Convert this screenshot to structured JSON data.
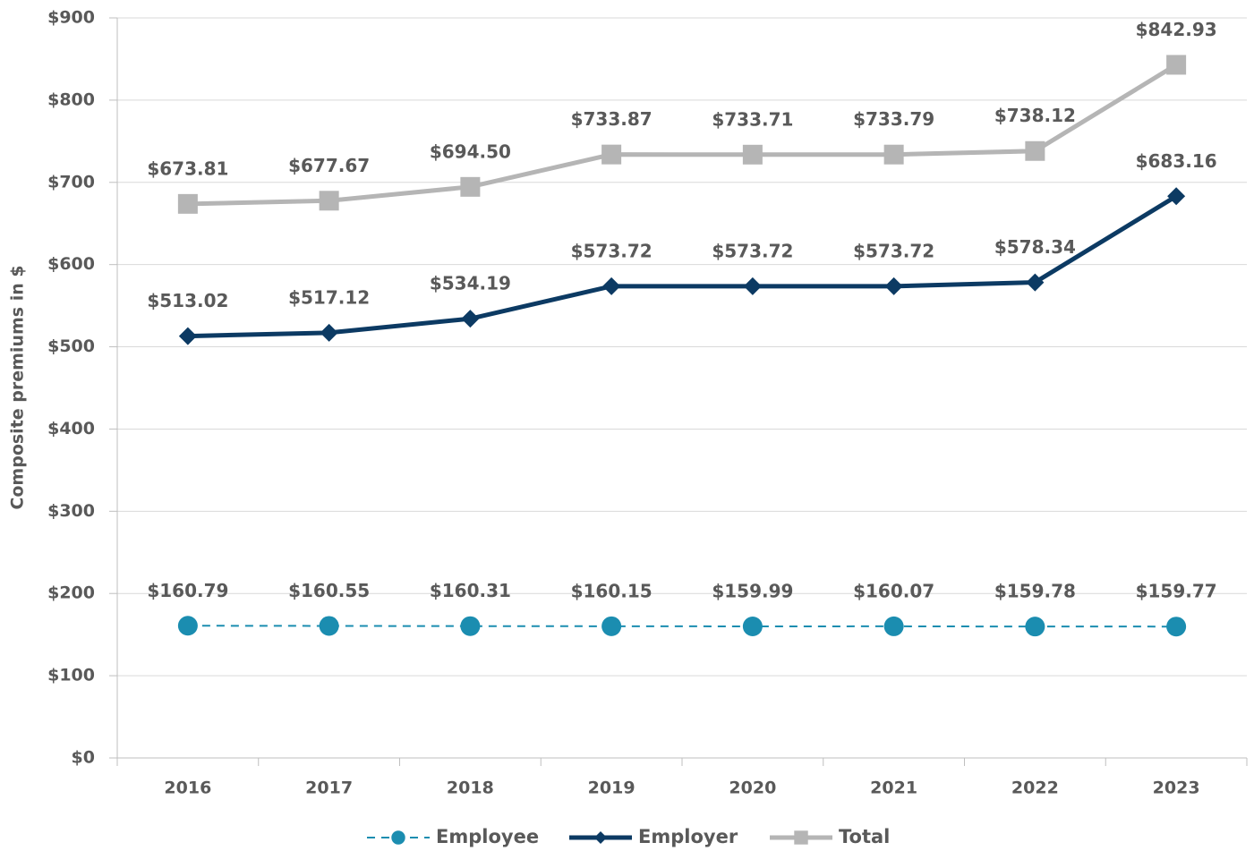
{
  "chart_data": {
    "type": "line",
    "y_label": "Composite premiums in $",
    "categories": [
      "2016",
      "2017",
      "2018",
      "2019",
      "2020",
      "2021",
      "2022",
      "2023"
    ],
    "series": [
      {
        "name": "Employee",
        "color": "#1b8db0",
        "marker": "circle",
        "dashed": true,
        "values": [
          160.79,
          160.55,
          160.31,
          160.15,
          159.99,
          160.07,
          159.78,
          159.77
        ],
        "value_labels": [
          "$160.79",
          "$160.55",
          "$160.31",
          "$160.15",
          "$159.99",
          "$160.07",
          "$159.78",
          "$159.77"
        ]
      },
      {
        "name": "Employer",
        "color": "#0c3a63",
        "marker": "diamond",
        "dashed": false,
        "values": [
          513.02,
          517.12,
          534.19,
          573.72,
          573.72,
          573.72,
          578.34,
          683.16
        ],
        "value_labels": [
          "$513.02",
          "$517.12",
          "$534.19",
          "$573.72",
          "$573.72",
          "$573.72",
          "$578.34",
          "$683.16"
        ]
      },
      {
        "name": "Total",
        "color": "#b5b5b5",
        "marker": "square",
        "dashed": false,
        "values": [
          673.81,
          677.67,
          694.5,
          733.87,
          733.71,
          733.79,
          738.12,
          842.93
        ],
        "value_labels": [
          "$673.81",
          "$677.67",
          "$694.50",
          "$733.87",
          "$733.71",
          "$733.79",
          "$738.12",
          "$842.93"
        ]
      }
    ],
    "ylim": [
      0,
      900
    ],
    "yticks": [
      {
        "value": 0,
        "label": "$0"
      },
      {
        "value": 100,
        "label": "$100"
      },
      {
        "value": 200,
        "label": "$200"
      },
      {
        "value": 300,
        "label": "$300"
      },
      {
        "value": 400,
        "label": "$400"
      },
      {
        "value": 500,
        "label": "$500"
      },
      {
        "value": 600,
        "label": "$600"
      },
      {
        "value": 700,
        "label": "$700"
      },
      {
        "value": 800,
        "label": "$800"
      },
      {
        "value": 900,
        "label": "$900"
      }
    ],
    "grid": true,
    "legend": "bottom"
  }
}
